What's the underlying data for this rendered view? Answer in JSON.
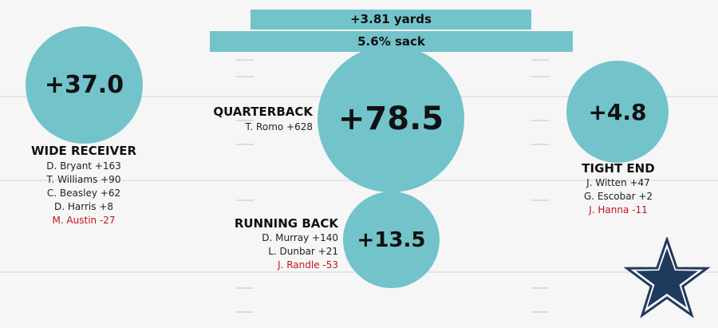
{
  "colors": {
    "bubble": "#73c3cb",
    "negative": "#c2161d",
    "star_fill": "#203a5e"
  },
  "top_bars": {
    "yards": "+3.81 yards",
    "sack": "5.6% sack"
  },
  "wide_receiver": {
    "value": "+37.0",
    "title": "WIDE RECEIVER",
    "players": [
      "D. Bryant +163",
      "T. Williams +90",
      "C. Beasley +62",
      "D. Harris +8",
      "M. Austin -27"
    ]
  },
  "quarterback": {
    "value": "+78.5",
    "title": "QUARTERBACK",
    "players": [
      "T. Romo +628"
    ]
  },
  "tight_end": {
    "value": "+4.8",
    "title": "TIGHT END",
    "players": [
      "J. Witten +47",
      "G. Escobar +2",
      "J. Hanna -11"
    ]
  },
  "running_back": {
    "value": "+13.5",
    "title": "RUNNING BACK",
    "players": [
      "D. Murray +140",
      "L. Dunbar +21",
      "J. Randle -53"
    ]
  },
  "logo": {
    "icon": "star-icon"
  }
}
